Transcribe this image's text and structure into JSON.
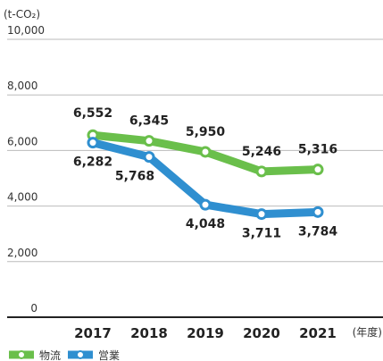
{
  "chart_data": {
    "type": "line",
    "unit_label": "(t-CO₂)",
    "x_unit_label": "(年度)",
    "categories": [
      "2017",
      "2018",
      "2019",
      "2020",
      "2021"
    ],
    "series": [
      {
        "name": "物流",
        "color": "#6abf4b",
        "values": [
          6552,
          6345,
          5950,
          5246,
          5316
        ],
        "value_labels": [
          "6,552",
          "6,345",
          "5,950",
          "5,246",
          "5,316"
        ]
      },
      {
        "name": "営業",
        "color": "#2f8fd0",
        "values": [
          6282,
          5768,
          4048,
          3711,
          3784
        ],
        "value_labels": [
          "6,282",
          "5,768",
          "4,048",
          "3,711",
          "3,784"
        ]
      }
    ],
    "ylim": [
      0,
      10000
    ],
    "yticks": [
      0,
      {
        "value": 2000,
        "label": "2,000"
      },
      {
        "value": 4000,
        "label": "4,000"
      },
      {
        "value": 6000,
        "label": "6,000"
      },
      {
        "value": 8000,
        "label": "8,000"
      },
      {
        "value": 10000,
        "label": "10,000"
      }
    ],
    "grid": true
  }
}
